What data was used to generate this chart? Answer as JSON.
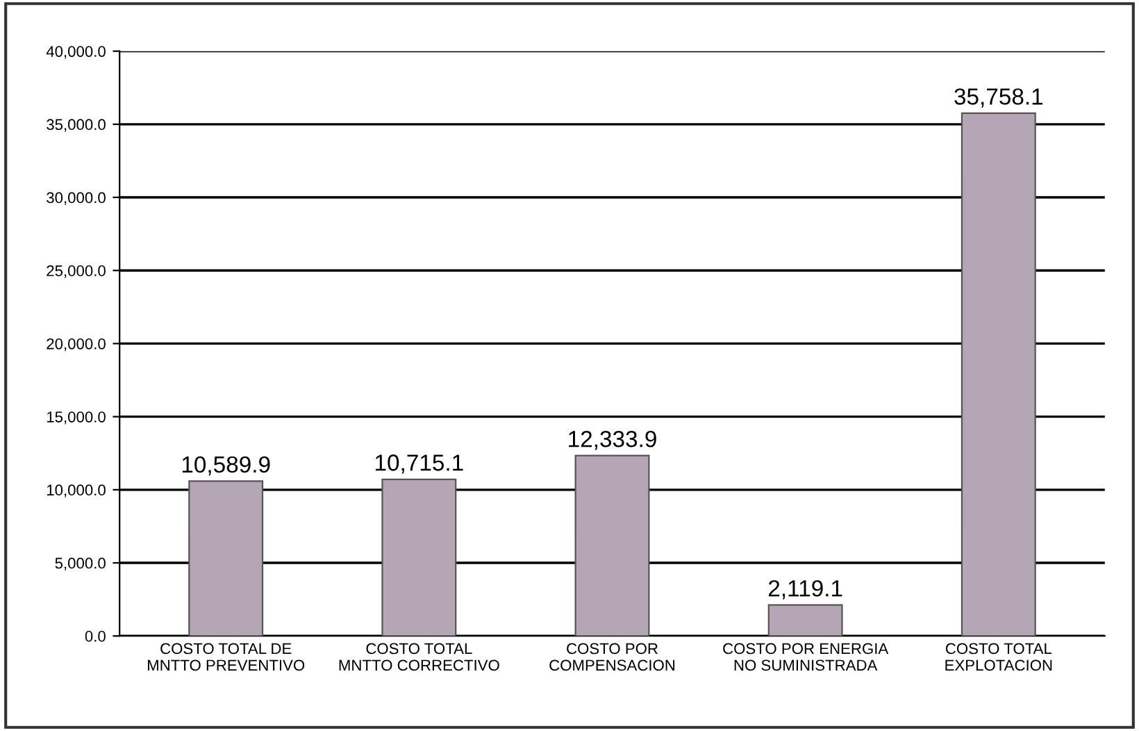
{
  "chart_data": {
    "type": "bar",
    "categories": [
      "COSTO TOTAL DE\nMNTTO PREVENTIVO",
      "COSTO TOTAL\nMNTTO CORRECTIVO",
      "COSTO POR\nCOMPENSACION",
      "COSTO POR ENERGIA\nNO SUMINISTRADA",
      "COSTO TOTAL\nEXPLOTACION"
    ],
    "values": [
      10589.9,
      10715.1,
      12333.9,
      2119.1,
      35758.1
    ],
    "value_labels": [
      "10,589.9",
      "10,715.1",
      "12,333.9",
      "2,119.1",
      "35,758.1"
    ],
    "color": "#b5a6b5",
    "ylim": [
      0,
      40000
    ],
    "yticks": [
      {
        "value": 0,
        "label": "0.0"
      },
      {
        "value": 5000,
        "label": "5,000.0"
      },
      {
        "value": 10000,
        "label": "10,000.0"
      },
      {
        "value": 15000,
        "label": "15,000.0"
      },
      {
        "value": 20000,
        "label": "20,000.0"
      },
      {
        "value": 25000,
        "label": "25,000.0"
      },
      {
        "value": 30000,
        "label": "30,000.0"
      },
      {
        "value": 35000,
        "label": "35,000.0"
      },
      {
        "value": 40000,
        "label": "40,000.0"
      }
    ],
    "grid": "y",
    "legend": false
  }
}
